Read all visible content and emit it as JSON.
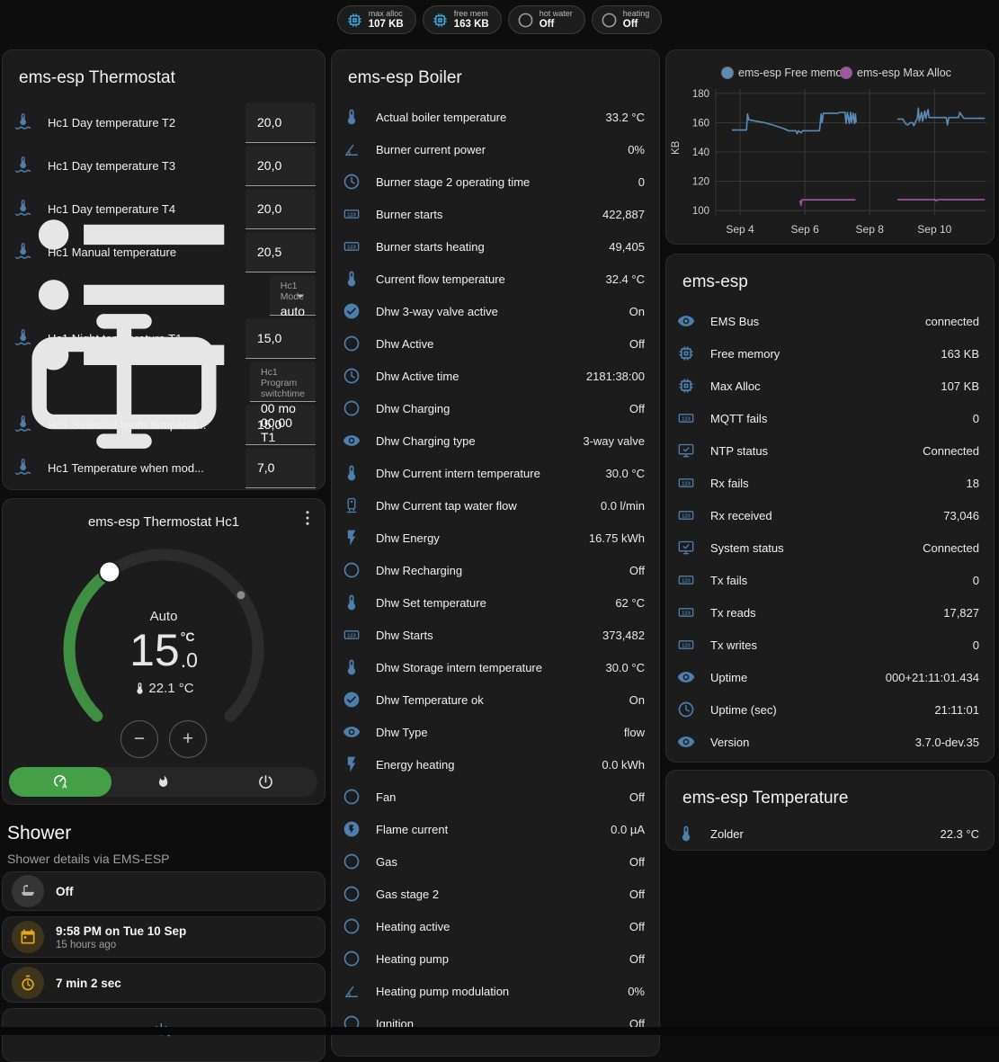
{
  "colors": {
    "accent_green": "#43a047",
    "icon_blue": "#4d7fae",
    "badge_blue": "#3ba3dc",
    "badge_gray": "#9e9e9e",
    "amber": "#e3aa1c",
    "frost_blue": "#4a90c4"
  },
  "badges": [
    {
      "icon": "chip",
      "icon_color": "#3ba3dc",
      "label": "max alloc",
      "value": "107 KB"
    },
    {
      "icon": "chip",
      "icon_color": "#3ba3dc",
      "label": "free mem",
      "value": "163 KB"
    },
    {
      "icon": "circle",
      "icon_color": "#9e9e9e",
      "label": "hot water",
      "value": "Off"
    },
    {
      "icon": "circle",
      "icon_color": "#9e9e9e",
      "label": "heating",
      "value": "Off"
    }
  ],
  "thermostat_card": {
    "title": "ems-esp Thermostat",
    "rows": [
      {
        "type": "number",
        "icon": "thermometer-water",
        "label": "Hc1 Day temperature T2",
        "value": "20,0"
      },
      {
        "type": "number",
        "icon": "thermometer-water",
        "label": "Hc1 Day temperature T3",
        "value": "20,0"
      },
      {
        "type": "number",
        "icon": "thermometer-water",
        "label": "Hc1 Day temperature T4",
        "value": "20,0"
      },
      {
        "type": "number",
        "icon": "thermometer-water",
        "label": "Hc1 Manual temperature",
        "value": "20,5"
      },
      {
        "type": "select",
        "icon": "list",
        "label": "Hc1 Mode",
        "value": "auto"
      },
      {
        "type": "number",
        "icon": "thermometer-water",
        "label": "Hc1 Night temperature T1",
        "value": "15,0"
      },
      {
        "type": "text",
        "icon": "textbox",
        "label": "Hc1 Program switchtime",
        "value": "00 mo 00:00 T1"
      },
      {
        "type": "number",
        "icon": "thermometer-water",
        "label": "Hc1 Selected room temperat...",
        "value": "15,0"
      },
      {
        "type": "number",
        "icon": "thermometer-water",
        "label": "Hc1 Temperature when mod...",
        "value": "7,0"
      }
    ]
  },
  "dial_card": {
    "title": "ems-esp Thermostat Hc1",
    "mode_label": "Auto",
    "target_whole": "15",
    "target_decimal": ".0",
    "unit": "°C",
    "current_temperature": "22.1 °C",
    "stepper_minus": "−",
    "stepper_plus": "+",
    "hvac_modes": [
      {
        "icon": "thermostat-auto",
        "active": true
      },
      {
        "icon": "flame",
        "active": false
      },
      {
        "icon": "power",
        "active": false
      }
    ]
  },
  "shower": {
    "title": "Shower",
    "subtitle": "Shower details via EMS-ESP",
    "items": [
      {
        "icon": "bathtub",
        "icon_color": "#b8b8b8",
        "circle_color": "#353535",
        "primary": "Off",
        "secondary": ""
      },
      {
        "icon": "calendar",
        "icon_color": "#e3aa1c",
        "circle_color": "rgba(227,170,28,0.18)",
        "primary": "9:58 PM on Tue 10 Sep",
        "secondary": "15 hours ago"
      },
      {
        "icon": "timer",
        "icon_color": "#e3aa1c",
        "circle_color": "rgba(227,170,28,0.18)",
        "primary": "7 min 2 sec",
        "secondary": ""
      }
    ],
    "frost_icon": "snowflake-alert"
  },
  "boiler_card": {
    "title": "ems-esp Boiler",
    "rows": [
      {
        "icon": "thermometer",
        "name": "Actual boiler temperature",
        "value": "33.2 °C"
      },
      {
        "icon": "angle",
        "name": "Burner current power",
        "value": "0%"
      },
      {
        "icon": "clock",
        "name": "Burner stage 2 operating time",
        "value": "0"
      },
      {
        "icon": "counter",
        "name": "Burner starts",
        "value": "422,887"
      },
      {
        "icon": "counter",
        "name": "Burner starts heating",
        "value": "49,405"
      },
      {
        "icon": "thermometer",
        "name": "Current flow temperature",
        "value": "32.4 °C"
      },
      {
        "icon": "check-circle",
        "name": "Dhw 3-way valve active",
        "value": "On"
      },
      {
        "icon": "circle",
        "name": "Dhw Active",
        "value": "Off"
      },
      {
        "icon": "clock",
        "name": "Dhw Active time",
        "value": "2181:38:00"
      },
      {
        "icon": "circle",
        "name": "Dhw Charging",
        "value": "Off"
      },
      {
        "icon": "eye",
        "name": "Dhw Charging type",
        "value": "3-way valve"
      },
      {
        "icon": "thermometer",
        "name": "Dhw Current intern temperature",
        "value": "30.0 °C"
      },
      {
        "icon": "water-heater",
        "name": "Dhw Current tap water flow",
        "value": "0.0 l/min"
      },
      {
        "icon": "flash",
        "name": "Dhw Energy",
        "value": "16.75 kWh"
      },
      {
        "icon": "circle",
        "name": "Dhw Recharging",
        "value": "Off"
      },
      {
        "icon": "thermometer",
        "name": "Dhw Set temperature",
        "value": "62 °C"
      },
      {
        "icon": "counter",
        "name": "Dhw Starts",
        "value": "373,482"
      },
      {
        "icon": "thermometer",
        "name": "Dhw Storage intern temperature",
        "value": "30.0 °C"
      },
      {
        "icon": "check-circle",
        "name": "Dhw Temperature ok",
        "value": "On"
      },
      {
        "icon": "eye",
        "name": "Dhw Type",
        "value": "flow"
      },
      {
        "icon": "flash",
        "name": "Energy heating",
        "value": "0.0 kWh"
      },
      {
        "icon": "circle",
        "name": "Fan",
        "value": "Off"
      },
      {
        "icon": "flash-circle",
        "name": "Flame current",
        "value": "0.0 µA"
      },
      {
        "icon": "circle",
        "name": "Gas",
        "value": "Off"
      },
      {
        "icon": "circle",
        "name": "Gas stage 2",
        "value": "Off"
      },
      {
        "icon": "circle",
        "name": "Heating active",
        "value": "Off"
      },
      {
        "icon": "circle",
        "name": "Heating pump",
        "value": "Off"
      },
      {
        "icon": "angle",
        "name": "Heating pump modulation",
        "value": "0%"
      },
      {
        "icon": "circle",
        "name": "Ignition",
        "value": "Off"
      }
    ]
  },
  "chart_data": {
    "type": "line",
    "title": "",
    "ylabel": "KB",
    "ylim": [
      97,
      183
    ],
    "yticks": [
      100,
      120,
      140,
      160,
      180
    ],
    "xlim": [
      3.25,
      11.6
    ],
    "xticks": [
      {
        "x": 4,
        "label": "Sep 4"
      },
      {
        "x": 6,
        "label": "Sep 6"
      },
      {
        "x": 8,
        "label": "Sep 8"
      },
      {
        "x": 10,
        "label": "Sep 10"
      }
    ],
    "grid": true,
    "legend_position": "top",
    "series": [
      {
        "name": "ems-esp Free memory",
        "color": "#5b8cb8",
        "segments": [
          [
            [
              3.75,
              155
            ],
            [
              4.2,
              155
            ],
            [
              4.23,
              166
            ],
            [
              4.27,
              162
            ],
            [
              4.5,
              161
            ],
            [
              4.75,
              160
            ],
            [
              5.0,
              158.5
            ],
            [
              5.2,
              157
            ],
            [
              5.35,
              156
            ],
            [
              5.5,
              154.5
            ],
            [
              5.72,
              154.5
            ],
            [
              5.76,
              152.5
            ],
            [
              5.8,
              154.5
            ],
            [
              5.88,
              153
            ],
            [
              5.93,
              154.5
            ],
            [
              6.45,
              154.5
            ],
            [
              6.5,
              166
            ],
            [
              6.53,
              160
            ],
            [
              6.57,
              166.5
            ],
            [
              7.02,
              166.5
            ],
            [
              7.06,
              167
            ],
            [
              7.24,
              167
            ],
            [
              7.27,
              159.5
            ],
            [
              7.31,
              167
            ],
            [
              7.37,
              159.5
            ],
            [
              7.41,
              167
            ],
            [
              7.44,
              160
            ],
            [
              7.49,
              166.5
            ],
            [
              7.53,
              159.5
            ],
            [
              7.56,
              166
            ],
            [
              7.58,
              160
            ]
          ],
          [
            [
              8.85,
              162.5
            ],
            [
              9.02,
              162.5
            ],
            [
              9.06,
              161
            ],
            [
              9.12,
              159
            ],
            [
              9.18,
              158.5
            ],
            [
              9.25,
              160
            ],
            [
              9.32,
              160
            ],
            [
              9.36,
              158
            ],
            [
              9.42,
              161
            ],
            [
              9.47,
              163
            ],
            [
              9.5,
              170
            ],
            [
              9.53,
              161
            ],
            [
              9.6,
              167
            ],
            [
              9.63,
              161
            ],
            [
              9.7,
              168
            ],
            [
              9.73,
              163
            ],
            [
              9.8,
              169
            ],
            [
              9.83,
              163.5
            ],
            [
              10.1,
              163.5
            ],
            [
              10.36,
              163.5
            ],
            [
              10.4,
              158.5
            ],
            [
              10.44,
              163.5
            ],
            [
              10.74,
              163.5
            ],
            [
              10.78,
              167
            ],
            [
              10.84,
              165
            ],
            [
              10.9,
              163
            ],
            [
              11.55,
              163
            ]
          ]
        ]
      },
      {
        "name": "ems-esp Max Alloc",
        "color": "#a653a6",
        "segments": [
          [
            [
              5.85,
              107
            ],
            [
              5.88,
              103.5
            ],
            [
              5.91,
              107.3
            ],
            [
              7.56,
              107.3
            ]
          ],
          [
            [
              8.85,
              107.5
            ],
            [
              10.02,
              107.5
            ],
            [
              10.06,
              106.6
            ],
            [
              10.1,
              107.5
            ],
            [
              11.55,
              107.5
            ]
          ]
        ]
      }
    ]
  },
  "emsesp_card": {
    "title": "ems-esp",
    "rows": [
      {
        "icon": "eye",
        "name": "EMS Bus",
        "value": "connected"
      },
      {
        "icon": "chip",
        "name": "Free memory",
        "value": "163 KB"
      },
      {
        "icon": "chip",
        "name": "Max Alloc",
        "value": "107 KB"
      },
      {
        "icon": "counter",
        "name": "MQTT fails",
        "value": "0"
      },
      {
        "icon": "monitor-check",
        "name": "NTP status",
        "value": "Connected"
      },
      {
        "icon": "counter",
        "name": "Rx fails",
        "value": "18"
      },
      {
        "icon": "counter",
        "name": "Rx received",
        "value": "73,046"
      },
      {
        "icon": "monitor-check",
        "name": "System status",
        "value": "Connected"
      },
      {
        "icon": "counter",
        "name": "Tx fails",
        "value": "0"
      },
      {
        "icon": "counter",
        "name": "Tx reads",
        "value": "17,827"
      },
      {
        "icon": "counter",
        "name": "Tx writes",
        "value": "0"
      },
      {
        "icon": "eye",
        "name": "Uptime",
        "value": "000+21:11:01.434"
      },
      {
        "icon": "clock",
        "name": "Uptime (sec)",
        "value": "21:11:01"
      },
      {
        "icon": "eye",
        "name": "Version",
        "value": "3.7.0-dev.35"
      }
    ]
  },
  "temperature_card": {
    "title": "ems-esp Temperature",
    "rows": [
      {
        "icon": "thermometer",
        "name": "Zolder",
        "value": "22.3 °C"
      }
    ]
  }
}
